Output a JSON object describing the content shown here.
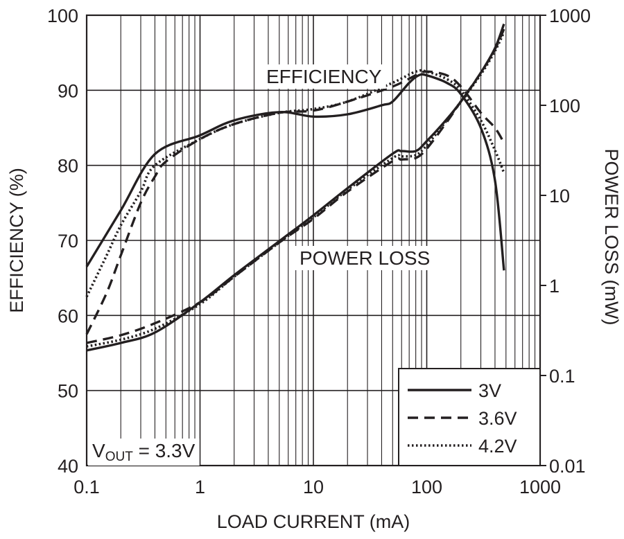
{
  "chart_data": {
    "type": "line",
    "x_axis": {
      "label": "LOAD CURRENT (mA)",
      "scale": "log",
      "range": [
        0.1,
        1000
      ],
      "ticks": [
        0.1,
        1,
        10,
        100,
        1000
      ],
      "tick_labels": [
        "0.1",
        "1",
        "10",
        "100",
        "1000"
      ]
    },
    "y_axis_left": {
      "label": "EFFICIENCY (%)",
      "scale": "linear",
      "range": [
        40,
        100
      ],
      "ticks": [
        40,
        50,
        60,
        70,
        80,
        90,
        100
      ],
      "tick_labels": [
        "40",
        "50",
        "60",
        "70",
        "80",
        "90",
        "100"
      ]
    },
    "y_axis_right": {
      "label": "POWER LOSS (mW)",
      "scale": "log",
      "range": [
        0.01,
        1000
      ],
      "ticks": [
        0.01,
        0.1,
        1,
        10,
        100,
        1000
      ],
      "tick_labels": [
        "0.01",
        "0.1",
        "1",
        "10",
        "100",
        "1000"
      ]
    },
    "grid": true,
    "annotations": {
      "efficiency": "EFFICIENCY",
      "power_loss": "POWER LOSS",
      "vout_prefix": "V",
      "vout_sub": "OUT",
      "vout_value": " = 3.3V"
    },
    "legend": {
      "placement": "bottom-right",
      "entries": [
        {
          "label": "3V",
          "style": "solid"
        },
        {
          "label": "3.6V",
          "style": "dashed"
        },
        {
          "label": "4.2V",
          "style": "dotted"
        }
      ]
    },
    "series": [
      {
        "legend": "3V",
        "group": "efficiency",
        "axis": "left",
        "style": "solid",
        "x": [
          0.1,
          0.2,
          0.4,
          1,
          2,
          5,
          10,
          20,
          40,
          50,
          70,
          85,
          100,
          150,
          200,
          300,
          400,
          480
        ],
        "y": [
          66.5,
          74,
          81.5,
          84,
          86,
          87.1,
          86.5,
          86.8,
          88,
          88.5,
          91,
          92,
          92,
          91,
          89.5,
          85,
          78,
          66
        ]
      },
      {
        "legend": "3.6V",
        "group": "efficiency",
        "axis": "left",
        "style": "dashed",
        "x": [
          0.1,
          0.15,
          0.2,
          0.3,
          0.4,
          0.5,
          1,
          2,
          5,
          10,
          20,
          50,
          80,
          100,
          150,
          200,
          300,
          400,
          480
        ],
        "y": [
          57.5,
          63,
          68,
          75,
          78.5,
          80.5,
          83.5,
          85.5,
          87,
          87.3,
          88.5,
          90.5,
          92,
          92.5,
          92,
          90.5,
          87,
          85,
          83
        ]
      },
      {
        "legend": "4.2V",
        "group": "efficiency",
        "axis": "left",
        "style": "dotted",
        "x": [
          0.1,
          0.15,
          0.2,
          0.3,
          0.4,
          1,
          2,
          5,
          10,
          20,
          50,
          80,
          100,
          150,
          200,
          300,
          400,
          480
        ],
        "y": [
          62.5,
          68,
          72,
          76.5,
          80,
          83.5,
          85.5,
          87,
          87.5,
          88.5,
          91,
          92.5,
          92.5,
          91.5,
          90,
          86,
          82,
          79
        ]
      },
      {
        "legend": "3V",
        "group": "power_loss",
        "axis": "right",
        "style": "solid",
        "x": [
          0.1,
          0.2,
          0.4,
          1,
          2,
          5,
          10,
          20,
          50,
          60,
          80,
          100,
          150,
          200,
          300,
          400,
          480
        ],
        "y": [
          0.19,
          0.23,
          0.3,
          0.65,
          1.3,
          3.1,
          6,
          12,
          29,
          31,
          31,
          40,
          70,
          110,
          230,
          430,
          800
        ]
      },
      {
        "legend": "3.6V",
        "group": "power_loss",
        "axis": "right",
        "style": "dashed",
        "x": [
          0.1,
          0.2,
          0.4,
          1,
          2,
          5,
          10,
          20,
          50,
          60,
          80,
          100,
          150,
          200,
          300,
          400,
          480
        ],
        "y": [
          0.23,
          0.28,
          0.38,
          0.65,
          1.25,
          3,
          5.5,
          11,
          24,
          25,
          26,
          33,
          65,
          110,
          230,
          420,
          700
        ]
      },
      {
        "legend": "4.2V",
        "group": "power_loss",
        "axis": "right",
        "style": "dotted",
        "x": [
          0.1,
          0.2,
          0.4,
          1,
          2,
          5,
          10,
          20,
          50,
          60,
          80,
          100,
          150,
          200,
          300,
          400,
          480
        ],
        "y": [
          0.21,
          0.25,
          0.33,
          0.62,
          1.25,
          3,
          5.7,
          11.5,
          26,
          27,
          28,
          36,
          68,
          110,
          220,
          400,
          650
        ]
      }
    ]
  }
}
